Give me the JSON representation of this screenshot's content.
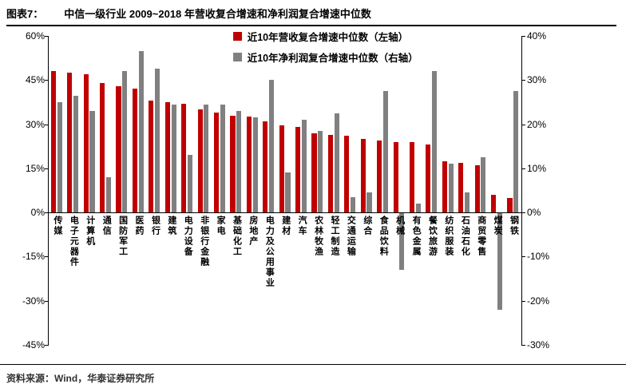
{
  "header": {
    "figure_label": "图表7：",
    "title": "中信一级行业 2009~2018 年营收复合增速和净利润复合增速中位数"
  },
  "footer": {
    "source": "资料来源：Wind，华泰证券研究所"
  },
  "chart_data": {
    "type": "bar",
    "title": "中信一级行业 2009~2018 年营收复合增速和净利润复合增速中位数",
    "legend_position": "top-center",
    "grid": false,
    "categories": [
      "传媒",
      "电子元器件",
      "计算机",
      "通信",
      "国防军工",
      "医药",
      "银行",
      "建筑",
      "电力设备",
      "非银行金融",
      "家电",
      "基础化工",
      "房地产",
      "电力及公用事业",
      "建材",
      "汽车",
      "农林牧渔",
      "轻工制造",
      "交通运输",
      "综合",
      "食品饮料",
      "机械",
      "有色金属",
      "餐饮旅游",
      "纺织服装",
      "石油石化",
      "商贸零售",
      "煤炭",
      "钢铁"
    ],
    "series": [
      {
        "name": "近10年营收复合增速中位数（左轴）",
        "axis": "left",
        "color": "#C00000",
        "values": [
          48,
          47.5,
          47,
          44,
          43,
          42,
          38,
          37.5,
          37,
          35,
          34,
          33,
          32.5,
          31,
          29.5,
          29,
          27,
          26.5,
          26,
          25,
          24.5,
          24,
          24,
          23,
          17.5,
          17,
          16,
          6,
          5
        ]
      },
      {
        "name": "近10年净利润复合增速中位数（右轴）",
        "axis": "right",
        "color": "#808080",
        "values": [
          25,
          26.5,
          23,
          8,
          32,
          36.5,
          32.5,
          24.5,
          13,
          24.5,
          24.5,
          23,
          21.5,
          30,
          9,
          21,
          18.5,
          22.5,
          3.5,
          4.5,
          27.5,
          -13,
          2,
          32,
          11,
          4.5,
          12.5,
          -22,
          27.5
        ]
      }
    ],
    "left_axis": {
      "ticks": [
        "60%",
        "45%",
        "30%",
        "15%",
        "0%",
        "-15%",
        "-30%",
        "-45%"
      ],
      "max": 60,
      "min": -45,
      "step": 15
    },
    "right_axis": {
      "ticks": [
        "40%",
        "30%",
        "20%",
        "10%",
        "0%",
        "-10%",
        "-20%",
        "-30%"
      ],
      "max": 40,
      "min": -30,
      "step": 10
    }
  }
}
